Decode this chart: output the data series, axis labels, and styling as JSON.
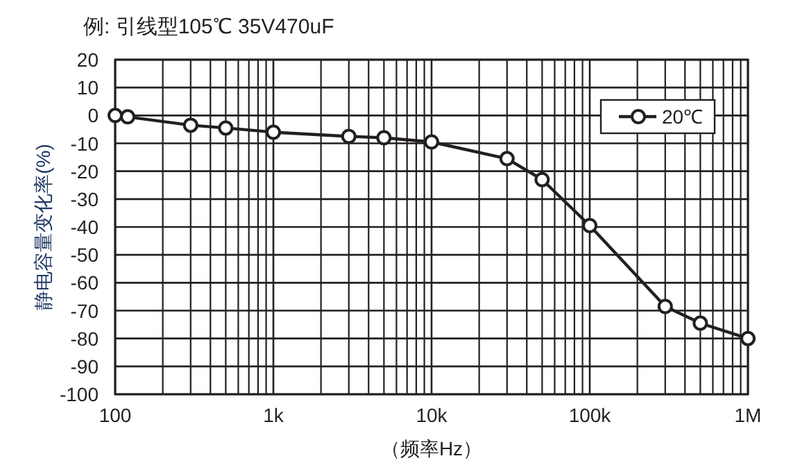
{
  "chart_data": {
    "type": "line",
    "title": "例: 引线型105℃ 35V470uF",
    "xlabel": "（频率Hz）",
    "ylabel": "静电容量变化率(%)",
    "x": [
      100,
      120,
      300,
      500,
      1000,
      3000,
      5000,
      10000,
      30000,
      50000,
      100000,
      300000,
      500000,
      1000000
    ],
    "series": [
      {
        "name": "20℃",
        "color": "#231f20",
        "values": [
          0,
          -0.5,
          -3.5,
          -4.5,
          -6,
          -7.5,
          -8,
          -9.5,
          -15.5,
          -23,
          -39.5,
          -68.5,
          -74.5,
          -80
        ]
      }
    ],
    "log": "x",
    "xlim": [
      100,
      1000000
    ],
    "xticks": [
      {
        "value": 100,
        "label": "100"
      },
      {
        "value": 1000,
        "label": "1k"
      },
      {
        "value": 10000,
        "label": "10k"
      },
      {
        "value": 100000,
        "label": "100k"
      },
      {
        "value": 1000000,
        "label": "1M"
      }
    ],
    "ylim": [
      -100,
      20
    ],
    "yticks": [
      -100,
      -90,
      -80,
      -70,
      -60,
      -50,
      -40,
      -30,
      -20,
      -10,
      0,
      10,
      20
    ],
    "grid": true,
    "legend": "top right",
    "marker": "circle",
    "line_style": "solid"
  }
}
